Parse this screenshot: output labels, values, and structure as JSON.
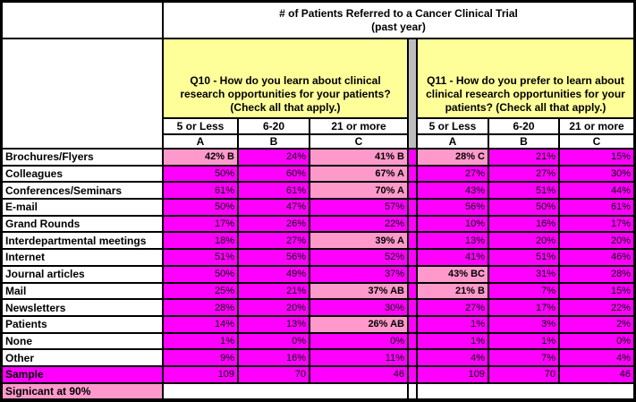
{
  "chart_data": {
    "type": "table",
    "title": "# of Patients Referred to a Cancer Clinical Trial",
    "subtitle": "(past year)",
    "col_groups": [
      {
        "question": "Q10 - How do you learn about clinical research opportunities for your patients? (Check all that apply.)",
        "columns": [
          {
            "range": "5 or Less",
            "letter": "A"
          },
          {
            "range": "6-20",
            "letter": "B"
          },
          {
            "range": "21 or more",
            "letter": "C"
          }
        ]
      },
      {
        "question": "Q11 - How do you prefer to learn about clinical research opportunities for your patients? (Check all that apply.)",
        "columns": [
          {
            "range": "5 or Less",
            "letter": "A"
          },
          {
            "range": "6-20",
            "letter": "B"
          },
          {
            "range": "21 or more",
            "letter": "C"
          }
        ]
      }
    ],
    "rows": [
      {
        "label": "Brochures/Flyers",
        "cells": [
          {
            "v": "42% B",
            "sig": true
          },
          {
            "v": "24%"
          },
          {
            "v": "41% B",
            "sig": true
          },
          {
            "v": "28% C",
            "sig": true
          },
          {
            "v": "21%"
          },
          {
            "v": "15%"
          }
        ]
      },
      {
        "label": "Colleagues",
        "cells": [
          {
            "v": "50%"
          },
          {
            "v": "60%"
          },
          {
            "v": "67% A",
            "sig": true
          },
          {
            "v": "27%"
          },
          {
            "v": "27%"
          },
          {
            "v": "30%"
          }
        ]
      },
      {
        "label": "Conferences/Seminars",
        "cells": [
          {
            "v": "61%"
          },
          {
            "v": "61%"
          },
          {
            "v": "70% A",
            "sig": true
          },
          {
            "v": "43%"
          },
          {
            "v": "51%"
          },
          {
            "v": "44%"
          }
        ]
      },
      {
        "label": "E-mail",
        "cells": [
          {
            "v": "50%"
          },
          {
            "v": "47%"
          },
          {
            "v": "57%"
          },
          {
            "v": "56%"
          },
          {
            "v": "50%"
          },
          {
            "v": "61%"
          }
        ]
      },
      {
        "label": "Grand Rounds",
        "cells": [
          {
            "v": "17%"
          },
          {
            "v": "26%"
          },
          {
            "v": "22%"
          },
          {
            "v": "10%"
          },
          {
            "v": "16%"
          },
          {
            "v": "17%"
          }
        ]
      },
      {
        "label": "Interdepartmental meetings",
        "cells": [
          {
            "v": "18%"
          },
          {
            "v": "27%"
          },
          {
            "v": "39% A",
            "sig": true
          },
          {
            "v": "13%"
          },
          {
            "v": "20%"
          },
          {
            "v": "20%"
          }
        ]
      },
      {
        "label": "Internet",
        "cells": [
          {
            "v": "51%"
          },
          {
            "v": "56%"
          },
          {
            "v": "52%"
          },
          {
            "v": "41%"
          },
          {
            "v": "51%"
          },
          {
            "v": "46%"
          }
        ]
      },
      {
        "label": "Journal articles",
        "cells": [
          {
            "v": "50%"
          },
          {
            "v": "49%"
          },
          {
            "v": "37%"
          },
          {
            "v": "43% BC",
            "sig": true
          },
          {
            "v": "31%"
          },
          {
            "v": "28%"
          }
        ]
      },
      {
        "label": "Mail",
        "cells": [
          {
            "v": "25%"
          },
          {
            "v": "21%"
          },
          {
            "v": "37% AB",
            "sig": true
          },
          {
            "v": "21% B",
            "sig": true
          },
          {
            "v": "7%"
          },
          {
            "v": "15%"
          }
        ]
      },
      {
        "label": "Newsletters",
        "cells": [
          {
            "v": "28%"
          },
          {
            "v": "20%"
          },
          {
            "v": "30%"
          },
          {
            "v": "27%"
          },
          {
            "v": "17%"
          },
          {
            "v": "22%"
          }
        ]
      },
      {
        "label": "Patients",
        "cells": [
          {
            "v": "14%"
          },
          {
            "v": "13%"
          },
          {
            "v": "26% AB",
            "sig": true
          },
          {
            "v": "1%"
          },
          {
            "v": "3%"
          },
          {
            "v": "2%"
          }
        ]
      },
      {
        "label": "None",
        "cells": [
          {
            "v": "1%"
          },
          {
            "v": "0%"
          },
          {
            "v": "0%"
          },
          {
            "v": "1%"
          },
          {
            "v": "1%"
          },
          {
            "v": "0%"
          }
        ]
      },
      {
        "label": "Other",
        "cells": [
          {
            "v": "9%"
          },
          {
            "v": "16%"
          },
          {
            "v": "11%"
          },
          {
            "v": "4%"
          },
          {
            "v": "7%"
          },
          {
            "v": "4%"
          }
        ]
      }
    ],
    "sample_row": {
      "label": "Sample",
      "values": [
        "109",
        "70",
        "46",
        "109",
        "70",
        "46"
      ]
    },
    "footer_label": "Signicant at 90%"
  },
  "colors": {
    "cell_magenta": "#FF00FF",
    "significant_pink": "#FF99CC",
    "header_yellow": "#FFFF99",
    "separator_gray": "#BDBDBD",
    "border_black": "#000000"
  }
}
